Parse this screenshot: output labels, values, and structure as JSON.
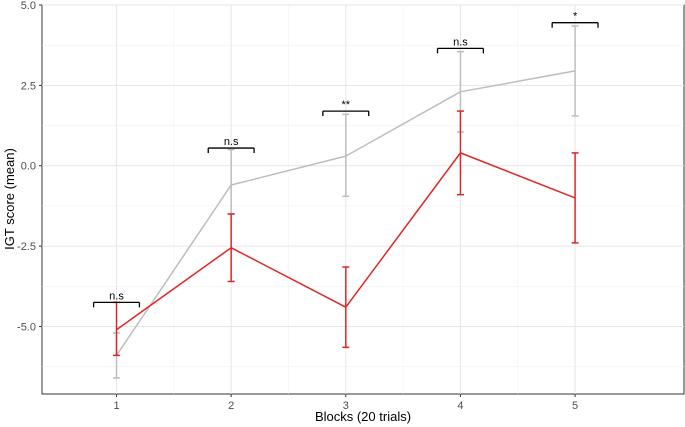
{
  "chart_data": {
    "type": "line",
    "title": "",
    "xlabel": "Blocks (20 trials)",
    "ylabel": "IGT score (mean)",
    "x": [
      1,
      2,
      3,
      4,
      5
    ],
    "x_tick_labels": [
      "1",
      "2",
      "3",
      "4",
      "5"
    ],
    "y_ticks": [
      5.0,
      2.5,
      0.0,
      -2.5,
      -5.0
    ],
    "y_tick_labels": [
      "5.0",
      "2.5",
      "0.0",
      "-2.5",
      "-5.0"
    ],
    "xlim": [
      0.35,
      5.95
    ],
    "ylim": [
      -7.1,
      5.0
    ],
    "grid": true,
    "legend": "none",
    "series": [
      {
        "color": "#bdbdbd",
        "values": [
          -5.9,
          -0.6,
          0.3,
          2.3,
          2.95
        ],
        "error_low": [
          -6.6,
          -1.5,
          -0.95,
          1.05,
          1.55
        ],
        "error_high": [
          -5.2,
          0.5,
          1.6,
          3.55,
          4.35
        ]
      },
      {
        "color": "#e02626",
        "values": [
          -5.1,
          -2.55,
          -4.4,
          0.4,
          -1.0
        ],
        "error_low": [
          -5.9,
          -3.6,
          -5.65,
          -0.9,
          -2.4
        ],
        "error_high": [
          -4.25,
          -1.5,
          -3.15,
          1.7,
          0.4
        ]
      }
    ],
    "annotations": [
      {
        "x": 1,
        "label": "n.s",
        "y": -4.25
      },
      {
        "x": 2,
        "label": "n.s",
        "y": 0.55
      },
      {
        "x": 3,
        "label": "**",
        "y": 1.7
      },
      {
        "x": 4,
        "label": "n.s",
        "y": 3.65
      },
      {
        "x": 5,
        "label": "*",
        "y": 4.45
      }
    ]
  }
}
